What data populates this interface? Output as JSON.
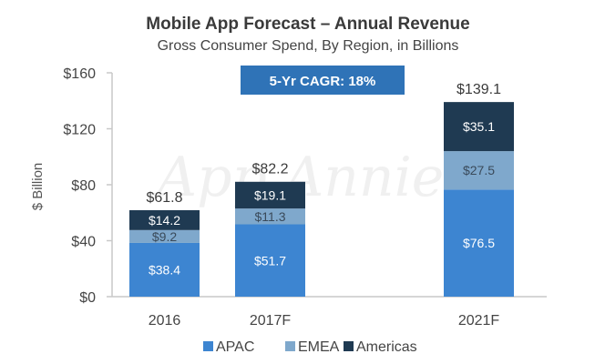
{
  "chart_data": {
    "type": "bar",
    "stacked": true,
    "title": "Mobile App Forecast – Annual Revenue",
    "subtitle": "Gross Consumer Spend, By Region, in Billions",
    "xlabel": "",
    "ylabel": "$ Billion",
    "ylim": [
      0,
      160
    ],
    "yticks": [
      0,
      40,
      80,
      120,
      160
    ],
    "ytick_labels": [
      "$0",
      "$40",
      "$80",
      "$120",
      "$160"
    ],
    "categories": [
      "2016",
      "2017F",
      "2021F"
    ],
    "series": [
      {
        "name": "APAC",
        "color": "#3d85d1",
        "label_color": "#ffffff",
        "values": [
          38.4,
          51.7,
          76.5
        ],
        "labels": [
          "$38.4",
          "$51.7",
          "$76.5"
        ]
      },
      {
        "name": "EMEA",
        "color": "#7fa8cc",
        "label_color": "#3a4a5a",
        "values": [
          9.2,
          11.3,
          27.5
        ],
        "labels": [
          "$9.2",
          "$11.3",
          "$27.5"
        ]
      },
      {
        "name": "Americas",
        "color": "#1f3a52",
        "label_color": "#ffffff",
        "values": [
          14.2,
          19.1,
          35.1
        ],
        "labels": [
          "$14.2",
          "$19.1",
          "$35.1"
        ]
      }
    ],
    "totals": [
      61.8,
      82.2,
      139.1
    ],
    "total_labels": [
      "$61.8",
      "$82.2",
      "$139.1"
    ],
    "annotation": {
      "text": "5-Yr CAGR: 18%",
      "background": "#2f73b7"
    },
    "watermark": "App Annie",
    "legend": {
      "position": "bottom"
    },
    "grid": false
  }
}
